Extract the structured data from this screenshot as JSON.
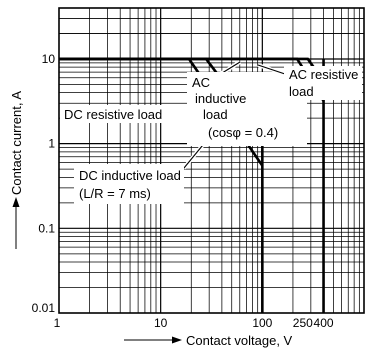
{
  "chart_data": {
    "type": "line",
    "title": "",
    "xlabel": "Contact voltage, V",
    "ylabel": "Contact current, A",
    "xscale": "log",
    "yscale": "log",
    "xlim": [
      1,
      1000
    ],
    "ylim": [
      0.01,
      40
    ],
    "grid": true,
    "x_tick_labels": [
      {
        "value": 1,
        "label": "1"
      },
      {
        "value": 10,
        "label": "10"
      },
      {
        "value": 100,
        "label": "100"
      },
      {
        "value": 250,
        "label": "250"
      },
      {
        "value": 400,
        "label": "400"
      }
    ],
    "y_tick_labels": [
      {
        "value": 10,
        "label": "10"
      },
      {
        "value": 1,
        "label": "1"
      },
      {
        "value": 0.1,
        "label": "0.1"
      },
      {
        "value": 0.01,
        "label": "0.01"
      }
    ],
    "series": [
      {
        "name": "DC resistive load",
        "x": [
          1,
          28,
          100
        ],
        "y": [
          10,
          10,
          1.3
        ]
      },
      {
        "name": "DC inductive load (L/R = 7 ms)",
        "x": [
          1,
          19,
          100
        ],
        "y": [
          10,
          10,
          0.55
        ]
      },
      {
        "name": "AC resistive load",
        "x": [
          1,
          280,
          400
        ],
        "y": [
          10,
          10,
          5.5
        ]
      },
      {
        "name": "AC inductive load (cosφ = 0.4)",
        "x": [
          1,
          220,
          400
        ],
        "y": [
          10,
          10,
          3.2
        ]
      }
    ],
    "boundaries": [
      {
        "x": 100,
        "y": [
          0.01,
          1.3
        ]
      },
      {
        "x": 400,
        "y": [
          0.01,
          10
        ]
      }
    ],
    "annotations": [
      {
        "lines": [
          "DC resistive load"
        ],
        "target_series": 0
      },
      {
        "lines": [
          "DC inductive load",
          "(L/R = 7 ms)"
        ],
        "target_series": 1
      },
      {
        "lines": [
          "AC",
          "inductive",
          "load",
          "(cosφ = 0.4)"
        ],
        "target_series": 3
      },
      {
        "lines": [
          "AC resistive",
          "load"
        ],
        "target_series": 2
      }
    ]
  }
}
